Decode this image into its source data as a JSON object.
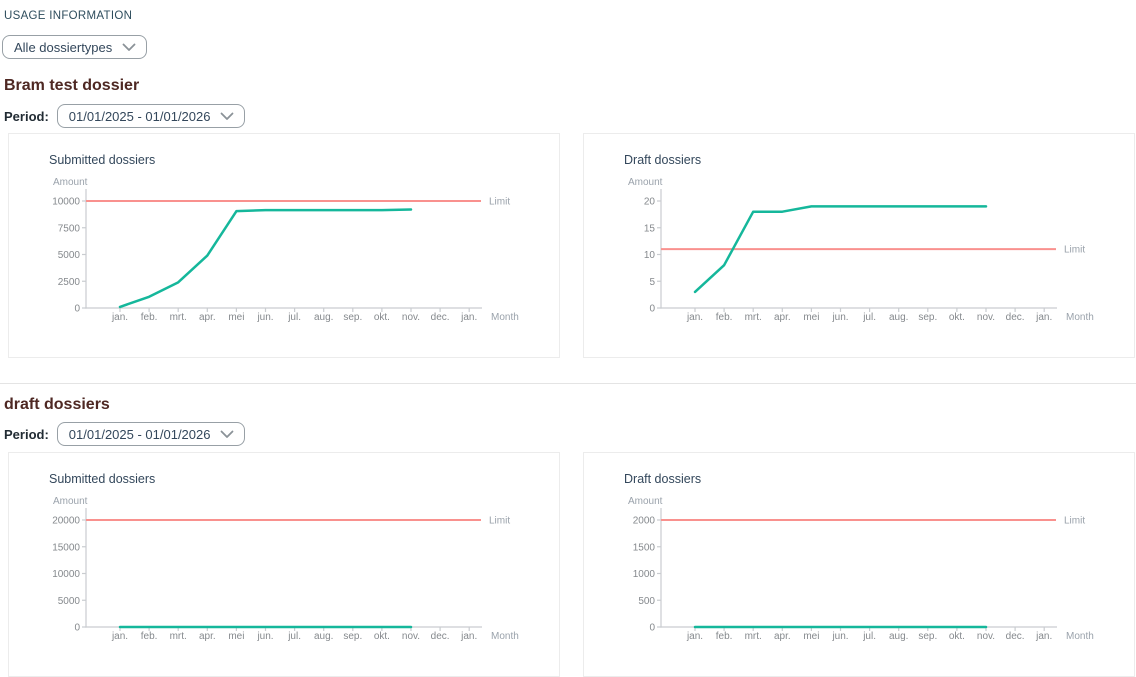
{
  "header": {
    "title": "USAGE INFORMATION"
  },
  "filters": {
    "dossier_type": {
      "value": "Alle dossiertypes",
      "icon": "chevron-down-icon"
    }
  },
  "colors": {
    "series_line": "#15b79b",
    "limit_line": "#f9918e",
    "section_heading": "#4e2823",
    "header_title": "#2e4d5d"
  },
  "sections": [
    {
      "heading": "Bram test dossier",
      "period_label": "Period:",
      "period_value": "01/01/2025 - 01/01/2026"
    },
    {
      "heading": "draft dossiers",
      "period_label": "Period:",
      "period_value": "01/01/2025 - 01/01/2026"
    }
  ],
  "chart_data": [
    {
      "type": "line",
      "section": "Bram test dossier",
      "title": "Submitted dossiers",
      "xlabel": "Month",
      "ylabel": "Amount",
      "categories": [
        "jan.",
        "feb.",
        "mrt.",
        "apr.",
        "mei",
        "jun.",
        "jul.",
        "aug.",
        "sep.",
        "okt.",
        "nov.",
        "dec.",
        "jan."
      ],
      "series": [
        {
          "name": "Submitted dossiers",
          "color": "#15b79b",
          "values": [
            100,
            1050,
            2400,
            4900,
            9050,
            9150,
            9150,
            9150,
            9150,
            9150,
            9200
          ]
        }
      ],
      "limit": {
        "label": "Limit",
        "value": 10000,
        "color": "#f9918e"
      },
      "yticks": [
        0,
        2500,
        5000,
        7500,
        10000
      ],
      "ylim": [
        0,
        10000
      ],
      "grid": false,
      "legend": "none"
    },
    {
      "type": "line",
      "section": "Bram test dossier",
      "title": "Draft dossiers",
      "xlabel": "Month",
      "ylabel": "Amount",
      "categories": [
        "jan.",
        "feb.",
        "mrt.",
        "apr.",
        "mei",
        "jun.",
        "jul.",
        "aug.",
        "sep.",
        "okt.",
        "nov.",
        "dec.",
        "jan."
      ],
      "series": [
        {
          "name": "Draft dossiers",
          "color": "#15b79b",
          "values": [
            3,
            8,
            18,
            18,
            19,
            19,
            19,
            19,
            19,
            19,
            19
          ]
        }
      ],
      "limit": {
        "label": "Limit",
        "value": 11,
        "color": "#f9918e"
      },
      "yticks": [
        0,
        5,
        10,
        15,
        20
      ],
      "ylim": [
        0,
        20
      ],
      "grid": false,
      "legend": "none"
    },
    {
      "type": "line",
      "section": "draft dossiers",
      "title": "Submitted dossiers",
      "xlabel": "Month",
      "ylabel": "Amount",
      "categories": [
        "jan.",
        "feb.",
        "mrt.",
        "apr.",
        "mei",
        "jun.",
        "jul.",
        "aug.",
        "sep.",
        "okt.",
        "nov.",
        "dec.",
        "jan."
      ],
      "series": [
        {
          "name": "Submitted dossiers",
          "color": "#15b79b",
          "values": [
            0,
            0,
            0,
            0,
            0,
            0,
            0,
            0,
            0,
            0,
            0
          ]
        }
      ],
      "limit": {
        "label": "Limit",
        "value": 20000,
        "color": "#f9918e"
      },
      "yticks": [
        0,
        5000,
        10000,
        15000,
        20000
      ],
      "ylim": [
        0,
        20000
      ],
      "grid": false,
      "legend": "none"
    },
    {
      "type": "line",
      "section": "draft dossiers",
      "title": "Draft dossiers",
      "xlabel": "Month",
      "ylabel": "Amount",
      "categories": [
        "jan.",
        "feb.",
        "mrt.",
        "apr.",
        "mei",
        "jun.",
        "jul.",
        "aug.",
        "sep.",
        "okt.",
        "nov.",
        "dec.",
        "jan."
      ],
      "series": [
        {
          "name": "Draft dossiers",
          "color": "#15b79b",
          "values": [
            0,
            0,
            0,
            0,
            0,
            0,
            0,
            0,
            0,
            0,
            0
          ]
        }
      ],
      "limit": {
        "label": "Limit",
        "value": 2000,
        "color": "#f9918e"
      },
      "yticks": [
        0,
        500,
        1000,
        1500,
        2000
      ],
      "ylim": [
        0,
        2000
      ],
      "grid": false,
      "legend": "none"
    }
  ]
}
